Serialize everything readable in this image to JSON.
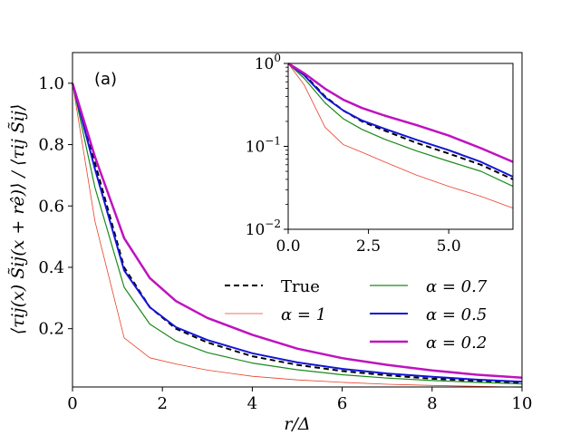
{
  "chart_data": [
    {
      "type": "line",
      "panel_label": "(a)",
      "xlabel": "r/Δ",
      "ylabel": "⟨τij(x) S̃ij(x + rê)⟩ / ⟨τij S̃ij⟩",
      "xlim": [
        0,
        10
      ],
      "ylim": [
        0.01,
        1.1
      ],
      "xticks": [
        0,
        2,
        4,
        6,
        8,
        10
      ],
      "xtick_labels": [
        "0",
        "2",
        "4",
        "6",
        "8",
        "10"
      ],
      "yticks": [
        0.2,
        0.4,
        0.6,
        0.8,
        1.0
      ],
      "ytick_labels": [
        "0.2",
        "0.4",
        "0.6",
        "0.8",
        "1.0"
      ],
      "legend_position": "lower-right",
      "x": [
        0,
        0.5,
        1.15,
        1.72,
        2.3,
        3.0,
        4.0,
        5.0,
        6.0,
        7.0,
        8.0,
        9.0,
        10.0
      ],
      "series": [
        {
          "name": "True",
          "color": "#000000",
          "dash": "dashed",
          "width": 2,
          "values": [
            1.0,
            0.74,
            0.4,
            0.27,
            0.2,
            0.155,
            0.11,
            0.082,
            0.062,
            0.048,
            0.037,
            0.03,
            0.024
          ]
        },
        {
          "name": "α = 1",
          "color": "#e8402a",
          "dash": "solid",
          "width": 0.8,
          "values": [
            1.0,
            0.55,
            0.17,
            0.105,
            0.085,
            0.065,
            0.045,
            0.033,
            0.025,
            0.019,
            0.015,
            0.012,
            0.009
          ]
        },
        {
          "name": "α = 0.7",
          "color": "#1a8a1a",
          "dash": "solid",
          "width": 1.2,
          "values": [
            1.0,
            0.66,
            0.335,
            0.215,
            0.16,
            0.122,
            0.088,
            0.066,
            0.05,
            0.039,
            0.031,
            0.025,
            0.02
          ]
        },
        {
          "name": "α = 0.5",
          "color": "#1414d8",
          "dash": "solid",
          "width": 2,
          "values": [
            1.0,
            0.72,
            0.39,
            0.27,
            0.205,
            0.163,
            0.12,
            0.09,
            0.069,
            0.054,
            0.043,
            0.034,
            0.027
          ]
        },
        {
          "name": "α = 0.2",
          "color": "#bf12bf",
          "dash": "solid",
          "width": 2.5,
          "values": [
            1.0,
            0.76,
            0.495,
            0.365,
            0.29,
            0.235,
            0.18,
            0.135,
            0.104,
            0.082,
            0.064,
            0.05,
            0.04
          ]
        }
      ]
    },
    {
      "type": "line",
      "xlim": [
        0,
        7
      ],
      "ylim": [
        0.01,
        1.0
      ],
      "yscale": "log",
      "xticks": [
        0,
        2.5,
        5.0
      ],
      "xtick_labels": [
        "0.0",
        "2.5",
        "5.0"
      ],
      "yticks": [
        0.01,
        0.1,
        1
      ],
      "ytick_labels": [
        {
          "base": "10",
          "exp": "−2"
        },
        {
          "base": "10",
          "exp": "−1"
        },
        {
          "base": "10",
          "exp": "0"
        }
      ],
      "x": [
        0,
        0.5,
        1.15,
        1.72,
        2.3,
        3.0,
        4.0,
        5.0,
        6.0,
        7.0
      ],
      "series": [
        {
          "name": "True",
          "values": [
            1.0,
            0.74,
            0.4,
            0.27,
            0.2,
            0.155,
            0.11,
            0.082,
            0.06,
            0.04
          ]
        },
        {
          "name": "α = 1",
          "values": [
            1.0,
            0.55,
            0.17,
            0.105,
            0.085,
            0.065,
            0.045,
            0.033,
            0.025,
            0.018
          ]
        },
        {
          "name": "α = 0.7",
          "values": [
            1.0,
            0.66,
            0.335,
            0.215,
            0.16,
            0.122,
            0.088,
            0.066,
            0.05,
            0.033
          ]
        },
        {
          "name": "α = 0.5",
          "values": [
            1.0,
            0.72,
            0.39,
            0.27,
            0.205,
            0.163,
            0.12,
            0.09,
            0.065,
            0.043
          ]
        },
        {
          "name": "α = 0.2",
          "values": [
            1.0,
            0.76,
            0.495,
            0.365,
            0.29,
            0.235,
            0.18,
            0.135,
            0.095,
            0.065
          ]
        }
      ]
    }
  ]
}
